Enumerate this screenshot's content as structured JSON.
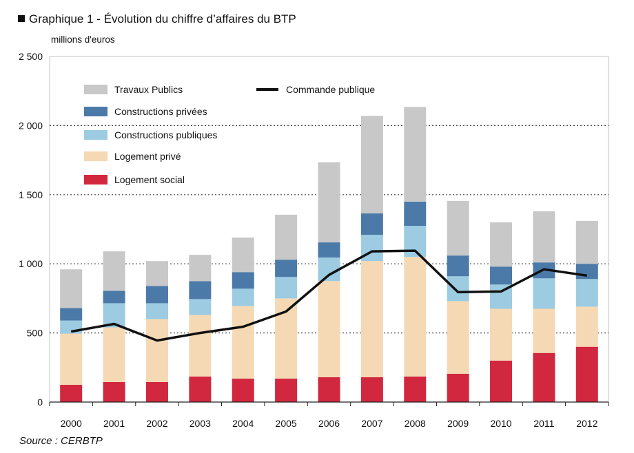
{
  "title": "Graphique 1 - Évolution du chiffre d’affaires du BTP",
  "unit": "millions d'euros",
  "source": "Source : CERBTP",
  "chart_data": {
    "type": "bar",
    "stacked": true,
    "categories": [
      "2000",
      "2001",
      "2002",
      "2003",
      "2004",
      "2005",
      "2006",
      "2007",
      "2008",
      "2009",
      "2010",
      "2011",
      "2012"
    ],
    "ylim": [
      0,
      2500
    ],
    "yticks": [
      0,
      500,
      1000,
      1500,
      2000,
      2500
    ],
    "ytick_labels": [
      "0",
      "500",
      "1 000",
      "1 500",
      "2 000",
      "2 500"
    ],
    "grid": "horizontal-dotted",
    "legend_position": "top-left",
    "series": [
      {
        "name": "Logement social",
        "color": "#d2283f",
        "values": [
          125,
          145,
          145,
          185,
          170,
          170,
          180,
          180,
          185,
          205,
          300,
          355,
          400
        ]
      },
      {
        "name": "Logement privé",
        "color": "#f5d9b4",
        "values": [
          370,
          395,
          455,
          445,
          525,
          580,
          695,
          840,
          865,
          525,
          375,
          320,
          290
        ]
      },
      {
        "name": "Constructions publiques",
        "color": "#9ccbe2",
        "values": [
          95,
          175,
          115,
          115,
          125,
          155,
          170,
          190,
          225,
          180,
          175,
          220,
          200
        ]
      },
      {
        "name": "Constructions privées",
        "color": "#4b7aa8",
        "values": [
          90,
          90,
          125,
          130,
          120,
          125,
          110,
          155,
          175,
          150,
          130,
          115,
          110
        ]
      },
      {
        "name": "Travaux Publics",
        "color": "#c8c8c8",
        "values": [
          280,
          285,
          180,
          190,
          250,
          325,
          580,
          705,
          685,
          395,
          320,
          370,
          310
        ]
      }
    ],
    "line": {
      "name": "Commande publique",
      "color": "#111111",
      "values": [
        510,
        565,
        445,
        500,
        545,
        655,
        920,
        1090,
        1095,
        795,
        800,
        960,
        915
      ]
    }
  }
}
